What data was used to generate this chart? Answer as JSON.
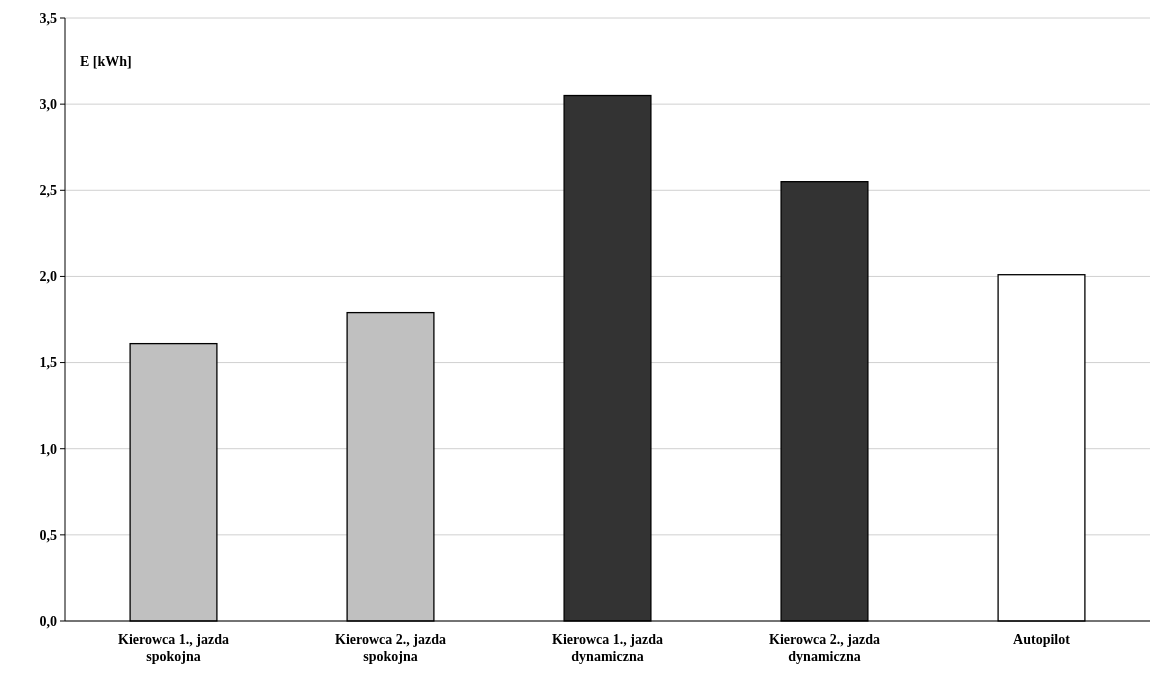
{
  "chart_data": {
    "type": "bar",
    "ylabel": "E [kWh]",
    "categories": [
      "Kierowca 1., jazda spokojna",
      "Kierowca 2., jazda spokojna",
      "Kierowca 1., jazda dynamiczna",
      "Kierowca 2., jazda dynamiczna",
      "Autopilot"
    ],
    "values": [
      1.61,
      1.79,
      3.05,
      2.55,
      2.01
    ],
    "colors": [
      "#c0c0c0",
      "#c0c0c0",
      "#333333",
      "#333333",
      "#ffffff"
    ],
    "ylim": [
      0,
      3.5
    ],
    "yticks": [
      {
        "value": 0,
        "label": "0,0"
      },
      {
        "value": 0.5,
        "label": "0,5"
      },
      {
        "value": 1,
        "label": "1,0"
      },
      {
        "value": 1.5,
        "label": "1,5"
      },
      {
        "value": 2,
        "label": "2,0"
      },
      {
        "value": 2.5,
        "label": "2,5"
      },
      {
        "value": 3,
        "label": "3,0"
      },
      {
        "value": 3.5,
        "label": "3,5"
      }
    ],
    "grid": "y"
  }
}
